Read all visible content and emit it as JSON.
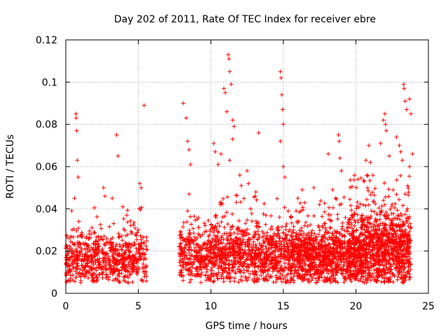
{
  "chart_data": {
    "type": "scatter",
    "title": "Day 202 of 2011, Rate Of TEC Index for receiver ebre",
    "xlabel": "GPS time / hours",
    "ylabel": "ROTI / TECUs",
    "xlim": [
      0,
      25
    ],
    "ylim": [
      0,
      0.12
    ],
    "xticks": [
      0,
      5,
      10,
      15,
      20,
      25
    ],
    "xtick_labels": [
      "0",
      "5",
      "10",
      "15",
      "20",
      "25"
    ],
    "yticks": [
      0,
      0.02,
      0.04,
      0.06,
      0.08,
      0.1,
      0.12
    ],
    "ytick_labels": [
      "0",
      "0.02",
      "0.04",
      "0.06",
      "0.08",
      "0.1",
      "0.12"
    ],
    "grid": true,
    "marker": "plus",
    "series_color": "#ff0000",
    "data_gap_hours": [
      5.6,
      7.8
    ],
    "series": [
      {
        "name": "ROTI",
        "points": [
          [
            0.7,
            0.085
          ],
          [
            0.72,
            0.083
          ],
          [
            0.75,
            0.077
          ],
          [
            0.8,
            0.063
          ],
          [
            0.85,
            0.055
          ],
          [
            0.6,
            0.045
          ],
          [
            0.9,
            0.034
          ],
          [
            2.6,
            0.05
          ],
          [
            2.7,
            0.046
          ],
          [
            3.3,
            0.033
          ],
          [
            3.5,
            0.075
          ],
          [
            3.6,
            0.065
          ],
          [
            3.2,
            0.045
          ],
          [
            5.1,
            0.052
          ],
          [
            5.2,
            0.05
          ],
          [
            5.4,
            0.089
          ],
          [
            5.0,
            0.03
          ],
          [
            4.2,
            0.037
          ],
          [
            8.1,
            0.09
          ],
          [
            8.3,
            0.083
          ],
          [
            8.4,
            0.072
          ],
          [
            8.5,
            0.068
          ],
          [
            8.6,
            0.061
          ],
          [
            8.5,
            0.047
          ],
          [
            8.4,
            0.039
          ],
          [
            10.2,
            0.071
          ],
          [
            10.3,
            0.067
          ],
          [
            10.5,
            0.061
          ],
          [
            10.7,
            0.066
          ],
          [
            10.9,
            0.097
          ],
          [
            11.0,
            0.095
          ],
          [
            11.1,
            0.086
          ],
          [
            11.2,
            0.113
          ],
          [
            11.25,
            0.111
          ],
          [
            11.3,
            0.105
          ],
          [
            11.4,
            0.099
          ],
          [
            11.5,
            0.082
          ],
          [
            11.6,
            0.079
          ],
          [
            11.5,
            0.073
          ],
          [
            11.3,
            0.063
          ],
          [
            12.0,
            0.056
          ],
          [
            12.1,
            0.051
          ],
          [
            12.5,
            0.058
          ],
          [
            12.6,
            0.052
          ],
          [
            13.3,
            0.076
          ],
          [
            13.1,
            0.048
          ],
          [
            14.8,
            0.105
          ],
          [
            14.85,
            0.102
          ],
          [
            14.9,
            0.094
          ],
          [
            14.95,
            0.087
          ],
          [
            15.0,
            0.08
          ],
          [
            14.8,
            0.072
          ],
          [
            15.0,
            0.06
          ],
          [
            15.1,
            0.055
          ],
          [
            16.0,
            0.045
          ],
          [
            16.3,
            0.049
          ],
          [
            17.1,
            0.05
          ],
          [
            17.5,
            0.042
          ],
          [
            18.1,
            0.066
          ],
          [
            18.4,
            0.049
          ],
          [
            18.6,
            0.045
          ],
          [
            18.8,
            0.075
          ],
          [
            18.85,
            0.072
          ],
          [
            18.9,
            0.064
          ],
          [
            19.0,
            0.058
          ],
          [
            20.7,
            0.063
          ],
          [
            20.9,
            0.07
          ],
          [
            21.0,
            0.062
          ],
          [
            21.7,
            0.071
          ],
          [
            21.9,
            0.082
          ],
          [
            22.0,
            0.085
          ],
          [
            22.05,
            0.08
          ],
          [
            22.1,
            0.077
          ],
          [
            22.3,
            0.065
          ],
          [
            22.8,
            0.074
          ],
          [
            23.0,
            0.07
          ],
          [
            23.1,
            0.067
          ],
          [
            23.2,
            0.063
          ],
          [
            23.3,
            0.099
          ],
          [
            23.32,
            0.097
          ],
          [
            23.4,
            0.091
          ],
          [
            23.5,
            0.087
          ],
          [
            23.7,
            0.092
          ],
          [
            23.8,
            0.085
          ],
          [
            23.9,
            0.066
          ],
          [
            23.7,
            0.06
          ],
          [
            23.4,
            0.047
          ]
        ],
        "bands": [
          {
            "x": [
              0.0,
              5.6
            ],
            "y_center": 0.016,
            "y_spread": 0.014,
            "density": 700
          },
          {
            "x": [
              7.8,
              10.0
            ],
            "y_center": 0.018,
            "y_spread": 0.015,
            "density": 300
          },
          {
            "x": [
              10.0,
              16.0
            ],
            "y_center": 0.018,
            "y_spread": 0.016,
            "density": 1000
          },
          {
            "x": [
              16.0,
              19.5
            ],
            "y_center": 0.017,
            "y_spread": 0.016,
            "density": 750
          },
          {
            "x": [
              19.5,
              23.8
            ],
            "y_center": 0.02,
            "y_spread": 0.02,
            "density": 1200
          }
        ]
      }
    ]
  }
}
